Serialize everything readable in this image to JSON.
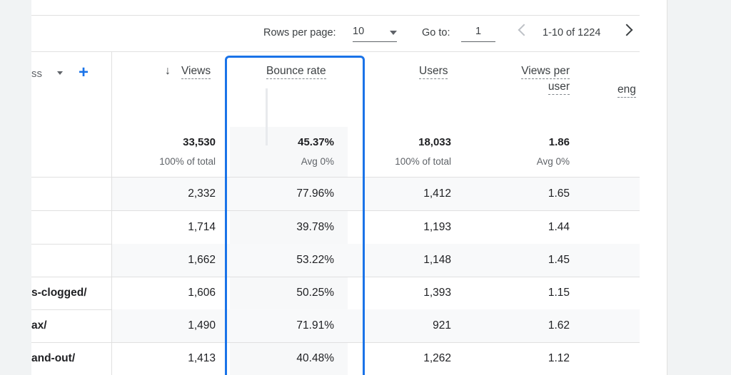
{
  "pagination": {
    "rows_per_page_label": "Rows per page:",
    "rows_per_page_value": "10",
    "goto_label": "Go to:",
    "goto_value": "1",
    "range_text": "1-10 of 1224"
  },
  "columns": {
    "dimension_label": "ss",
    "views": "Views",
    "bounce_rate": "Bounce rate",
    "users": "Users",
    "views_per_user_line1": "Views per",
    "views_per_user_line2": "user",
    "engagement_partial": "eng"
  },
  "summary": {
    "views": {
      "value": "33,530",
      "sub": "100% of total"
    },
    "bounce_rate": {
      "value": "45.37%",
      "sub": "Avg 0%"
    },
    "users": {
      "value": "18,033",
      "sub": "100% of total"
    },
    "views_per_user": {
      "value": "1.86",
      "sub": "Avg 0%"
    }
  },
  "rows": [
    {
      "path": "",
      "views": "2,332",
      "bounce_rate": "77.96%",
      "users": "1,412",
      "views_per_user": "1.65"
    },
    {
      "path": "",
      "views": "1,714",
      "bounce_rate": "39.78%",
      "users": "1,193",
      "views_per_user": "1.44"
    },
    {
      "path": "",
      "views": "1,662",
      "bounce_rate": "53.22%",
      "users": "1,148",
      "views_per_user": "1.45"
    },
    {
      "path": "s-clogged/",
      "views": "1,606",
      "bounce_rate": "50.25%",
      "users": "1,393",
      "views_per_user": "1.15"
    },
    {
      "path": "ax/",
      "views": "1,490",
      "bounce_rate": "71.91%",
      "users": "921",
      "views_per_user": "1.62"
    },
    {
      "path": "and-out/",
      "views": "1,413",
      "bounce_rate": "40.48%",
      "users": "1,262",
      "views_per_user": "1.12"
    }
  ],
  "colors": {
    "accent": "#1a73e8",
    "row_shade": "#f8f9fa",
    "divider": "#e0e0e0"
  },
  "icons": {
    "sort": "arrow-down-icon",
    "add": "plus-icon",
    "prev": "chevron-left-icon",
    "next": "chevron-right-icon",
    "dropdown": "caret-down-icon"
  }
}
